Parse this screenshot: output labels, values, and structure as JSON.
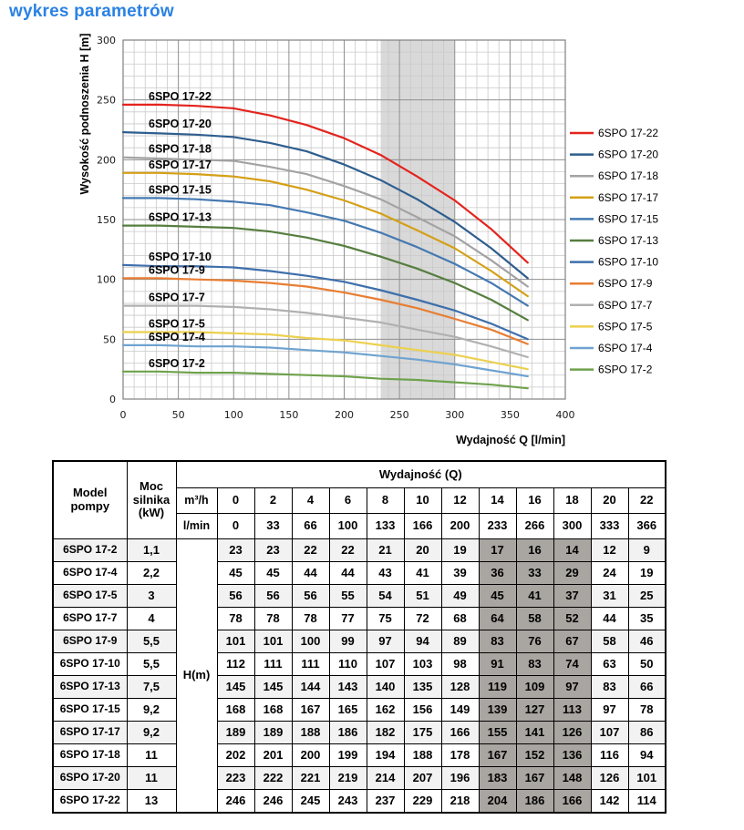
{
  "page": {
    "title": "wykres parametrów",
    "accent_color": "#2B82E4"
  },
  "chart_data": {
    "type": "line",
    "title": "",
    "xlabel": "Wydajność Q [l/min]",
    "ylabel": "Wysokość podnoszenia H [m]",
    "xlim": [
      0,
      400
    ],
    "ylim": [
      0,
      300
    ],
    "x_tick_step": 50,
    "y_tick_step": 50,
    "minor_grid_step": 10,
    "grid": true,
    "legend_position": "right",
    "highlight_band_x": [
      233,
      300
    ],
    "highlight_band_color": "#D9D9D9",
    "x": [
      0,
      33,
      66,
      100,
      133,
      166,
      200,
      233,
      266,
      300,
      333,
      366
    ],
    "series": [
      {
        "name": "6SPO 17-22",
        "color": "#E3241D",
        "values": [
          246,
          246,
          245,
          243,
          237,
          229,
          218,
          204,
          186,
          166,
          142,
          114
        ]
      },
      {
        "name": "6SPO 17-20",
        "color": "#2E5E8E",
        "values": [
          223,
          222,
          221,
          219,
          214,
          207,
          196,
          183,
          167,
          148,
          126,
          101
        ]
      },
      {
        "name": "6SPO 17-18",
        "color": "#A3A3A3",
        "values": [
          202,
          201,
          200,
          199,
          194,
          188,
          178,
          167,
          152,
          136,
          116,
          94
        ]
      },
      {
        "name": "6SPO 17-17",
        "color": "#D4A017",
        "values": [
          189,
          189,
          188,
          186,
          182,
          175,
          166,
          155,
          141,
          126,
          107,
          86
        ]
      },
      {
        "name": "6SPO 17-15",
        "color": "#4579B2",
        "values": [
          168,
          168,
          167,
          165,
          162,
          156,
          149,
          139,
          127,
          113,
          97,
          78
        ]
      },
      {
        "name": "6SPO 17-13",
        "color": "#567E3F",
        "values": [
          145,
          145,
          144,
          143,
          140,
          135,
          128,
          119,
          109,
          97,
          83,
          66
        ]
      },
      {
        "name": "6SPO 17-10",
        "color": "#3E6FAC",
        "values": [
          112,
          111,
          111,
          110,
          107,
          103,
          98,
          91,
          83,
          74,
          63,
          50
        ]
      },
      {
        "name": "6SPO 17-9",
        "color": "#E87E33",
        "values": [
          101,
          101,
          100,
          99,
          97,
          94,
          89,
          83,
          76,
          67,
          58,
          46
        ]
      },
      {
        "name": "6SPO 17-7",
        "color": "#B0B0B0",
        "values": [
          78,
          78,
          78,
          77,
          75,
          72,
          68,
          64,
          58,
          52,
          44,
          35
        ]
      },
      {
        "name": "6SPO 17-5",
        "color": "#ECD04F",
        "values": [
          56,
          56,
          56,
          55,
          54,
          51,
          49,
          45,
          41,
          37,
          31,
          25
        ]
      },
      {
        "name": "6SPO 17-4",
        "color": "#6FA3D0",
        "values": [
          45,
          45,
          44,
          44,
          43,
          41,
          39,
          36,
          33,
          29,
          24,
          19
        ]
      },
      {
        "name": "6SPO 17-2",
        "color": "#6FA24C",
        "values": [
          23,
          23,
          22,
          22,
          21,
          20,
          19,
          17,
          16,
          14,
          12,
          9
        ]
      }
    ]
  },
  "table": {
    "header": {
      "model": "Model pompy",
      "power": "Moc silnika (kW)",
      "flow_group": "Wydajność (Q)",
      "unit_m3h": "m³/h",
      "unit_lmin": "l/min",
      "head_unit": "H(m)",
      "m3h_values": [
        "0",
        "2",
        "4",
        "6",
        "8",
        "10",
        "12",
        "14",
        "16",
        "18",
        "20",
        "22"
      ],
      "lmin_values": [
        "0",
        "33",
        "66",
        "100",
        "133",
        "166",
        "200",
        "233",
        "266",
        "300",
        "333",
        "366"
      ]
    },
    "gray_column_indices": [
      7,
      8,
      9
    ],
    "rows": [
      {
        "model": "6SPO 17-2",
        "power_kw": "1,1",
        "values": [
          23,
          23,
          22,
          22,
          21,
          20,
          19,
          17,
          16,
          14,
          12,
          9
        ]
      },
      {
        "model": "6SPO 17-4",
        "power_kw": "2,2",
        "values": [
          45,
          45,
          44,
          44,
          43,
          41,
          39,
          36,
          33,
          29,
          24,
          19
        ]
      },
      {
        "model": "6SPO 17-5",
        "power_kw": "3",
        "values": [
          56,
          56,
          56,
          55,
          54,
          51,
          49,
          45,
          41,
          37,
          31,
          25
        ]
      },
      {
        "model": "6SPO 17-7",
        "power_kw": "4",
        "values": [
          78,
          78,
          78,
          77,
          75,
          72,
          68,
          64,
          58,
          52,
          44,
          35
        ]
      },
      {
        "model": "6SPO 17-9",
        "power_kw": "5,5",
        "values": [
          101,
          101,
          100,
          99,
          97,
          94,
          89,
          83,
          76,
          67,
          58,
          46
        ]
      },
      {
        "model": "6SPO 17-10",
        "power_kw": "5,5",
        "values": [
          112,
          111,
          111,
          110,
          107,
          103,
          98,
          91,
          83,
          74,
          63,
          50
        ]
      },
      {
        "model": "6SPO 17-13",
        "power_kw": "7,5",
        "values": [
          145,
          145,
          144,
          143,
          140,
          135,
          128,
          119,
          109,
          97,
          83,
          66
        ]
      },
      {
        "model": "6SPO 17-15",
        "power_kw": "9,2",
        "values": [
          168,
          168,
          167,
          165,
          162,
          156,
          149,
          139,
          127,
          113,
          97,
          78
        ]
      },
      {
        "model": "6SPO 17-17",
        "power_kw": "9,2",
        "values": [
          189,
          189,
          188,
          186,
          182,
          175,
          166,
          155,
          141,
          126,
          107,
          86
        ]
      },
      {
        "model": "6SPO 17-18",
        "power_kw": "11",
        "values": [
          202,
          201,
          200,
          199,
          194,
          188,
          178,
          167,
          152,
          136,
          116,
          94
        ]
      },
      {
        "model": "6SPO 17-20",
        "power_kw": "11",
        "values": [
          223,
          222,
          221,
          219,
          214,
          207,
          196,
          183,
          167,
          148,
          126,
          101
        ]
      },
      {
        "model": "6SPO 17-22",
        "power_kw": "13",
        "values": [
          246,
          246,
          245,
          243,
          237,
          229,
          218,
          204,
          186,
          166,
          142,
          114
        ]
      }
    ]
  }
}
